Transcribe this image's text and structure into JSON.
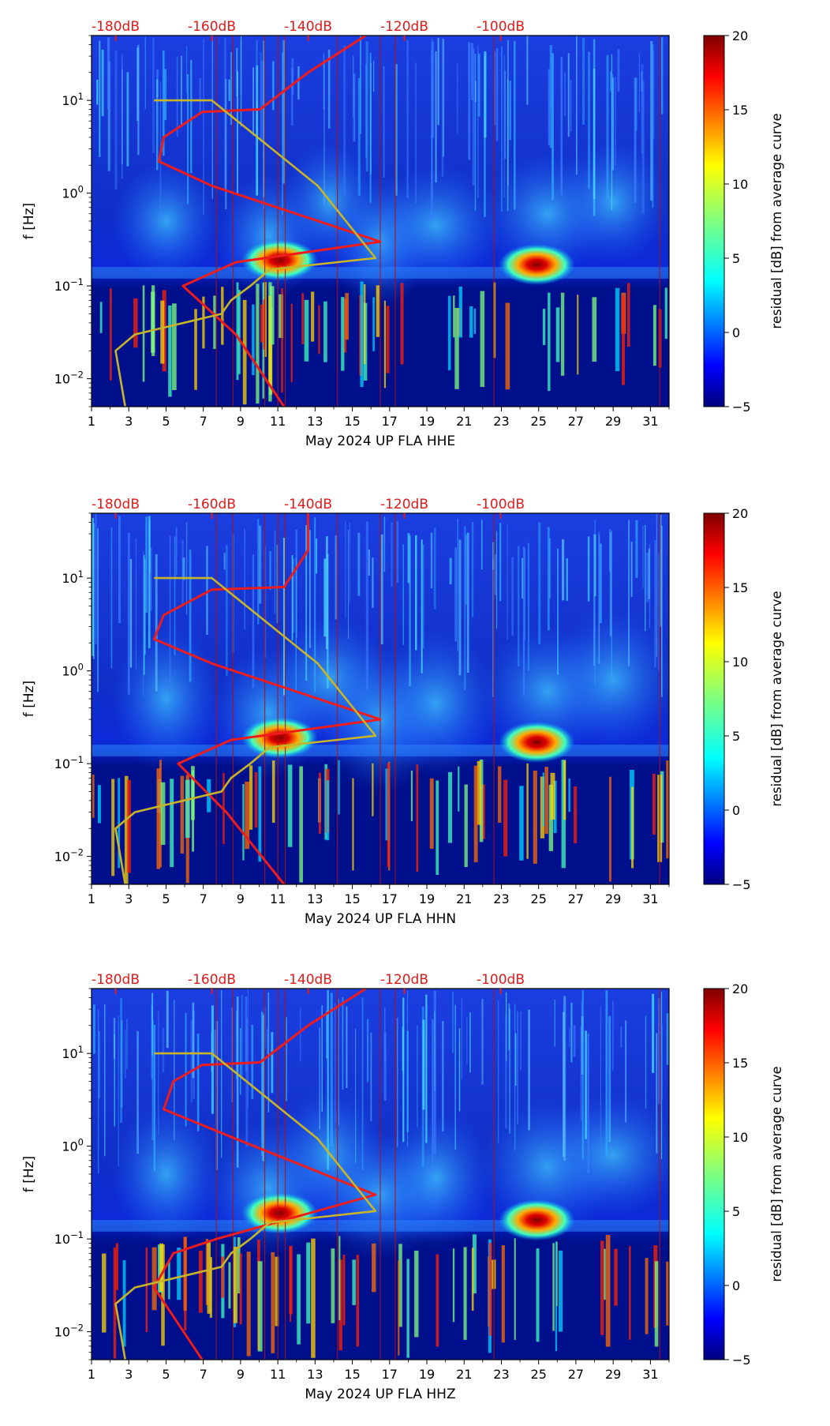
{
  "figure": {
    "colors": {
      "red_curve": "#ee1c1c",
      "model_curve": "#c8b428",
      "db_label": "#e41a1a",
      "event_line": "#b01010"
    }
  },
  "chart_data": [
    {
      "type": "heatmap",
      "title": "",
      "xlabel": "May 2024 UP FLA  HHE",
      "ylabel": "f [Hz]",
      "xlim": [
        1,
        32
      ],
      "ylim": [
        0.005,
        50
      ],
      "yscale": "log",
      "x_ticks": [
        "1",
        "3",
        "5",
        "7",
        "9",
        "11",
        "13",
        "15",
        "17",
        "19",
        "21",
        "23",
        "25",
        "27",
        "29",
        "31"
      ],
      "y_ticks": [
        "10^-2",
        "10^-1",
        "10^0",
        "10^1"
      ],
      "top_axis_labels": [
        "-180dB",
        "-160dB",
        "-140dB",
        "-120dB",
        "-100dB"
      ],
      "colorbar": {
        "label": "residual [dB] from average curve",
        "range": [
          -5,
          20
        ],
        "ticks": [
          "−5",
          "0",
          "5",
          "10",
          "15",
          "20"
        ]
      },
      "hotspots": [
        {
          "day": 11.1,
          "freq": 0.19
        },
        {
          "day": 24.9,
          "freq": 0.17
        }
      ],
      "series": [
        {
          "name": "PSD average curve (dB, top axis)",
          "axis": "top",
          "points": [
            [
              -145,
              0.005
            ],
            [
              -155,
              0.03
            ],
            [
              -166,
              0.1
            ],
            [
              -155,
              0.18
            ],
            [
              -125,
              0.3
            ],
            [
              -160,
              1.2
            ],
            [
              -171,
              2.2
            ],
            [
              -170,
              4.0
            ],
            [
              -162,
              7.5
            ],
            [
              -150,
              8.0
            ],
            [
              -140,
              20.0
            ],
            [
              -128,
              50.0
            ]
          ]
        },
        {
          "name": "noise model (dB, top axis)",
          "axis": "top",
          "points": [
            [
              -178,
              0.005
            ],
            [
              -179,
              0.01
            ],
            [
              -180,
              0.02
            ],
            [
              -176,
              0.03
            ],
            [
              -158,
              0.05
            ],
            [
              -156,
              0.07
            ],
            [
              -152,
              0.1
            ],
            [
              -148,
              0.15
            ],
            [
              -126,
              0.2
            ],
            [
              -138,
              1.2
            ],
            [
              -160,
              10
            ],
            [
              -172,
              10
            ]
          ]
        }
      ]
    },
    {
      "type": "heatmap",
      "title": "",
      "xlabel": "May 2024 UP FLA  HHN",
      "ylabel": "f [Hz]",
      "xlim": [
        1,
        32
      ],
      "ylim": [
        0.005,
        50
      ],
      "yscale": "log",
      "x_ticks": [
        "1",
        "3",
        "5",
        "7",
        "9",
        "11",
        "13",
        "15",
        "17",
        "19",
        "21",
        "23",
        "25",
        "27",
        "29",
        "31"
      ],
      "y_ticks": [
        "10^-2",
        "10^-1",
        "10^0",
        "10^1"
      ],
      "top_axis_labels": [
        "-180dB",
        "-160dB",
        "-140dB",
        "-120dB",
        "-100dB"
      ],
      "colorbar": {
        "label": "residual [dB] from average curve",
        "range": [
          -5,
          20
        ],
        "ticks": [
          "−5",
          "0",
          "5",
          "10",
          "15",
          "20"
        ]
      },
      "hotspots": [
        {
          "day": 11.1,
          "freq": 0.19
        },
        {
          "day": 24.9,
          "freq": 0.17
        }
      ],
      "series": [
        {
          "name": "PSD average curve (dB, top axis)",
          "axis": "top",
          "points": [
            [
              -145,
              0.005
            ],
            [
              -157,
              0.03
            ],
            [
              -167,
              0.1
            ],
            [
              -156,
              0.18
            ],
            [
              -125,
              0.3
            ],
            [
              -160,
              1.2
            ],
            [
              -172,
              2.2
            ],
            [
              -170,
              4.0
            ],
            [
              -160,
              7.5
            ],
            [
              -145,
              8.0
            ],
            [
              -140,
              20.0
            ],
            [
              -140,
              50.0
            ]
          ]
        },
        {
          "name": "noise model (dB, top axis)",
          "axis": "top",
          "points": [
            [
              -178,
              0.005
            ],
            [
              -179,
              0.01
            ],
            [
              -180,
              0.02
            ],
            [
              -176,
              0.03
            ],
            [
              -158,
              0.05
            ],
            [
              -156,
              0.07
            ],
            [
              -152,
              0.1
            ],
            [
              -148,
              0.15
            ],
            [
              -126,
              0.2
            ],
            [
              -138,
              1.2
            ],
            [
              -160,
              10
            ],
            [
              -172,
              10
            ]
          ]
        }
      ]
    },
    {
      "type": "heatmap",
      "title": "",
      "xlabel": "May 2024 UP FLA  HHZ",
      "ylabel": "f [Hz]",
      "xlim": [
        1,
        32
      ],
      "ylim": [
        0.005,
        50
      ],
      "yscale": "log",
      "x_ticks": [
        "1",
        "3",
        "5",
        "7",
        "9",
        "11",
        "13",
        "15",
        "17",
        "19",
        "21",
        "23",
        "25",
        "27",
        "29",
        "31"
      ],
      "y_ticks": [
        "10^-2",
        "10^-1",
        "10^0",
        "10^1"
      ],
      "top_axis_labels": [
        "-180dB",
        "-160dB",
        "-140dB",
        "-120dB",
        "-100dB"
      ],
      "colorbar": {
        "label": "residual [dB] from average curve",
        "range": [
          -5,
          20
        ],
        "ticks": [
          "−5",
          "0",
          "5",
          "10",
          "15",
          "20"
        ]
      },
      "hotspots": [
        {
          "day": 11.1,
          "freq": 0.19
        },
        {
          "day": 24.9,
          "freq": 0.16
        }
      ],
      "series": [
        {
          "name": "PSD average curve (dB, top axis)",
          "axis": "top",
          "points": [
            [
              -162,
              0.005
            ],
            [
              -172,
              0.03
            ],
            [
              -168,
              0.07
            ],
            [
              -159,
              0.1
            ],
            [
              -126,
              0.3
            ],
            [
              -155,
              1.2
            ],
            [
              -170,
              2.5
            ],
            [
              -168,
              5.0
            ],
            [
              -162,
              7.5
            ],
            [
              -150,
              8.0
            ],
            [
              -140,
              20.0
            ],
            [
              -128,
              50.0
            ]
          ]
        },
        {
          "name": "noise model (dB, top axis)",
          "axis": "top",
          "points": [
            [
              -178,
              0.005
            ],
            [
              -179,
              0.01
            ],
            [
              -180,
              0.02
            ],
            [
              -176,
              0.03
            ],
            [
              -158,
              0.05
            ],
            [
              -156,
              0.07
            ],
            [
              -152,
              0.1
            ],
            [
              -148,
              0.15
            ],
            [
              -126,
              0.2
            ],
            [
              -138,
              1.2
            ],
            [
              -160,
              10
            ],
            [
              -172,
              10
            ]
          ]
        }
      ]
    }
  ]
}
